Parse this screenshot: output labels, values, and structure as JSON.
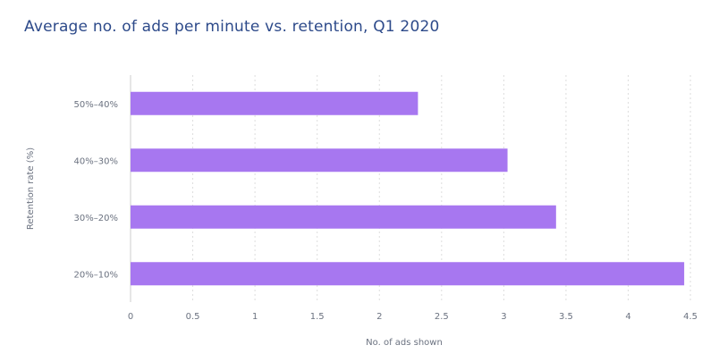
{
  "title": "Average no. of ads per minute vs. retention, Q1 2020",
  "chart_data": {
    "type": "bar",
    "orientation": "horizontal",
    "title": "Average no. of ads per minute vs. retention, Q1 2020",
    "xlabel": "No. of ads shown",
    "ylabel": "Retention rate (%)",
    "categories": [
      "50%–40%",
      "40%–30%",
      "30%–20%",
      "20%–10%"
    ],
    "values": [
      2.31,
      3.03,
      3.42,
      4.45
    ],
    "xlim": [
      0,
      4.6
    ],
    "xticks": [
      "0",
      "0.5",
      "1",
      "1.5",
      "2",
      "2.5",
      "3",
      "3.5",
      "4",
      "4.5"
    ],
    "grid": true,
    "legend": "none",
    "bar_color": "#a777f0"
  },
  "colors": {
    "title": "#2d4a8a",
    "bar": "#a777f0",
    "grid": "#dddddd",
    "axis": "#cccccc",
    "text": "#6b7280"
  }
}
